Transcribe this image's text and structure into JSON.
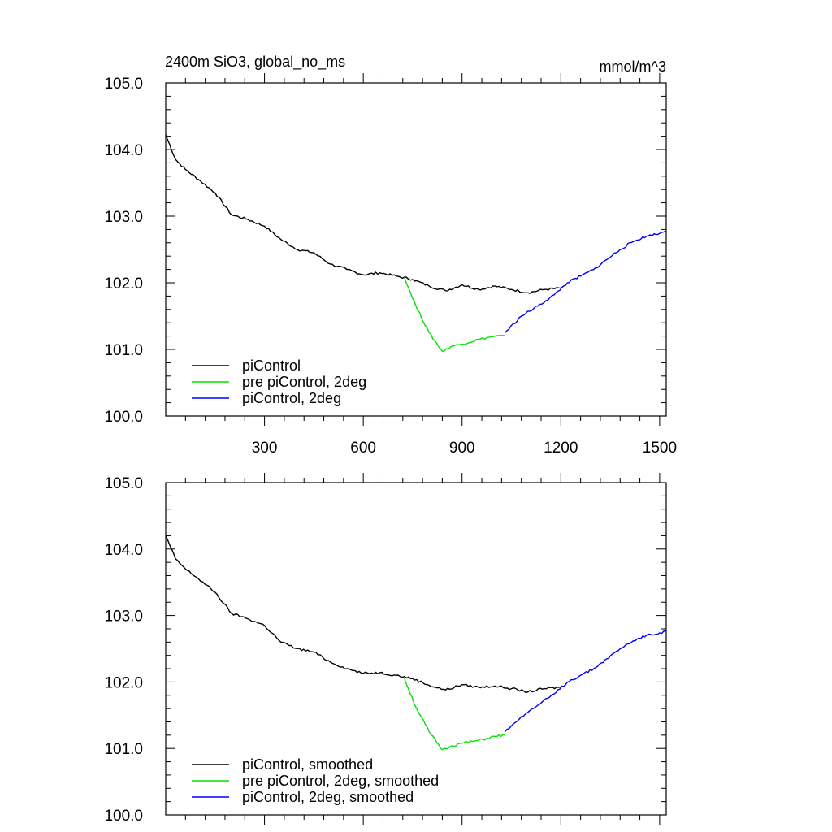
{
  "header": {
    "left_title": "2400m SiO3, global_no_ms",
    "right_title": "mmol/m^3"
  },
  "chart_data": [
    {
      "type": "line",
      "xlim": [
        0,
        1520
      ],
      "ylim": [
        100.0,
        105.0
      ],
      "x_ticks": [
        300,
        600,
        900,
        1200,
        1500
      ],
      "x_tick_labels": [
        "300",
        "600",
        "900",
        "1200",
        "1500"
      ],
      "y_ticks": [
        100.0,
        101.0,
        102.0,
        103.0,
        104.0,
        105.0
      ],
      "y_tick_labels": [
        "100.0",
        "101.0",
        "102.0",
        "103.0",
        "104.0",
        "105.0"
      ],
      "series": [
        {
          "name": "piControl",
          "color": "#000000",
          "x": [
            0,
            30,
            60,
            100,
            150,
            200,
            250,
            300,
            350,
            400,
            450,
            500,
            550,
            600,
            650,
            700,
            750,
            800,
            850,
            900,
            950,
            1000,
            1050,
            1100,
            1150,
            1200
          ],
          "y": [
            104.22,
            103.85,
            103.7,
            103.55,
            103.35,
            103.02,
            102.95,
            102.85,
            102.65,
            102.5,
            102.45,
            102.28,
            102.2,
            102.12,
            102.15,
            102.1,
            102.05,
            101.95,
            101.88,
            101.97,
            101.9,
            101.95,
            101.9,
            101.85,
            101.9,
            101.92
          ]
        },
        {
          "name": "pre piControl, 2deg",
          "color": "#00e400",
          "x": [
            725,
            760,
            800,
            840,
            870,
            900,
            950,
            1000,
            1030
          ],
          "y": [
            102.08,
            101.65,
            101.25,
            100.97,
            101.05,
            101.08,
            101.15,
            101.2,
            101.2
          ]
        },
        {
          "name": "piControl, 2deg",
          "color": "#0000ff",
          "x": [
            1030,
            1080,
            1130,
            1180,
            1220,
            1260,
            1300,
            1340,
            1380,
            1420,
            1460,
            1500,
            1520
          ],
          "y": [
            101.25,
            101.5,
            101.65,
            101.82,
            102.0,
            102.1,
            102.2,
            102.35,
            102.5,
            102.62,
            102.7,
            102.74,
            102.78
          ]
        }
      ]
    },
    {
      "type": "line",
      "xlim": [
        0,
        1520
      ],
      "ylim": [
        100.0,
        105.0
      ],
      "x_ticks": [
        300,
        600,
        900,
        1200,
        1500
      ],
      "x_tick_labels": [],
      "y_ticks": [
        100.0,
        101.0,
        102.0,
        103.0,
        104.0,
        105.0
      ],
      "y_tick_labels": [
        "100.0",
        "101.0",
        "102.0",
        "103.0",
        "104.0",
        "105.0"
      ],
      "series": [
        {
          "name": "piControl, smoothed",
          "color": "#000000",
          "x": [
            0,
            30,
            60,
            100,
            150,
            200,
            250,
            300,
            350,
            400,
            450,
            500,
            550,
            600,
            650,
            700,
            750,
            800,
            850,
            900,
            950,
            1000,
            1050,
            1100,
            1150,
            1200
          ],
          "y": [
            104.2,
            103.85,
            103.7,
            103.55,
            103.35,
            103.03,
            102.95,
            102.85,
            102.6,
            102.5,
            102.45,
            102.3,
            102.2,
            102.13,
            102.14,
            102.1,
            102.05,
            101.95,
            101.88,
            101.96,
            101.92,
            101.94,
            101.9,
            101.85,
            101.9,
            101.92
          ]
        },
        {
          "name": "pre piControl, 2deg, smoothed",
          "color": "#00e400",
          "x": [
            725,
            760,
            800,
            840,
            870,
            900,
            950,
            1000,
            1030
          ],
          "y": [
            102.05,
            101.62,
            101.25,
            100.98,
            101.04,
            101.08,
            101.12,
            101.18,
            101.2
          ]
        },
        {
          "name": "piControl, 2deg, smoothed",
          "color": "#0000ff",
          "x": [
            1030,
            1080,
            1130,
            1180,
            1220,
            1260,
            1300,
            1340,
            1380,
            1420,
            1460,
            1500,
            1520
          ],
          "y": [
            101.25,
            101.48,
            101.65,
            101.82,
            102.0,
            102.1,
            102.2,
            102.35,
            102.5,
            102.62,
            102.7,
            102.74,
            102.76
          ]
        }
      ]
    }
  ]
}
